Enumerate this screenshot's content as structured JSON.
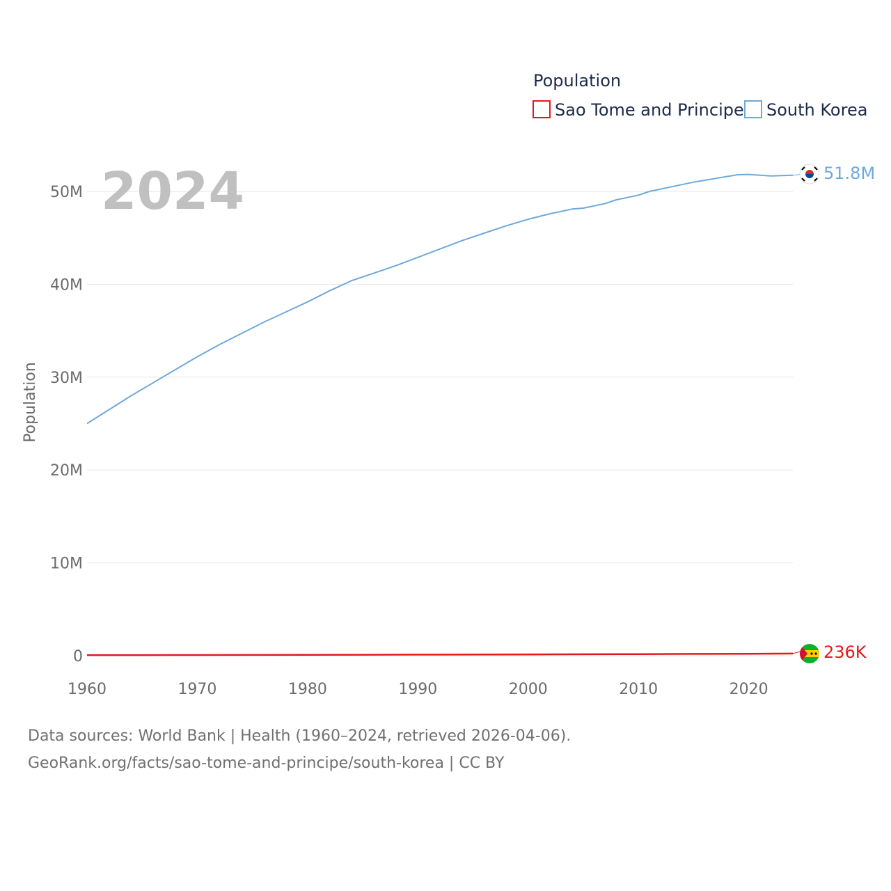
{
  "chart_data": {
    "type": "line",
    "title": "Population",
    "xlabel": "",
    "ylabel": "Population",
    "xlim": [
      1960,
      2024
    ],
    "ylim": [
      0,
      55000000
    ],
    "x_ticks": [
      1960,
      1970,
      1980,
      1990,
      2000,
      2010,
      2020
    ],
    "y_ticks": [
      0,
      10000000,
      20000000,
      30000000,
      40000000,
      50000000
    ],
    "y_tick_labels": [
      "0",
      "10M",
      "20M",
      "30M",
      "40M",
      "50M"
    ],
    "grid": true,
    "year_label": "2024",
    "legend": {
      "title": "Population",
      "position": "top-right"
    },
    "series": [
      {
        "name": "Sao Tome and Principe",
        "color": "#e31a1c",
        "end_label": "236K",
        "flag": "sao-tome-flag-icon",
        "points": [
          [
            1960,
            64000
          ],
          [
            1965,
            70000
          ],
          [
            1970,
            75000
          ],
          [
            1975,
            82000
          ],
          [
            1980,
            96000
          ],
          [
            1985,
            108000
          ],
          [
            1990,
            118000
          ],
          [
            1995,
            130000
          ],
          [
            2000,
            142000
          ],
          [
            2005,
            156000
          ],
          [
            2010,
            172000
          ],
          [
            2015,
            192000
          ],
          [
            2020,
            213000
          ],
          [
            2024,
            236000
          ]
        ]
      },
      {
        "name": "South Korea",
        "color": "#6fa8dc",
        "end_label": "51.8M",
        "flag": "south-korea-flag-icon",
        "points": [
          [
            1960,
            25000000
          ],
          [
            1962,
            26500000
          ],
          [
            1964,
            28000000
          ],
          [
            1966,
            29400000
          ],
          [
            1968,
            30800000
          ],
          [
            1970,
            32200000
          ],
          [
            1972,
            33500000
          ],
          [
            1974,
            34700000
          ],
          [
            1976,
            35900000
          ],
          [
            1978,
            37000000
          ],
          [
            1980,
            38100000
          ],
          [
            1982,
            39300000
          ],
          [
            1984,
            40400000
          ],
          [
            1986,
            41200000
          ],
          [
            1988,
            42000000
          ],
          [
            1990,
            42900000
          ],
          [
            1992,
            43800000
          ],
          [
            1994,
            44700000
          ],
          [
            1996,
            45500000
          ],
          [
            1998,
            46300000
          ],
          [
            2000,
            47000000
          ],
          [
            2002,
            47600000
          ],
          [
            2004,
            48100000
          ],
          [
            2005,
            48200000
          ],
          [
            2007,
            48700000
          ],
          [
            2008,
            49100000
          ],
          [
            2010,
            49600000
          ],
          [
            2011,
            50000000
          ],
          [
            2013,
            50500000
          ],
          [
            2015,
            51000000
          ],
          [
            2017,
            51400000
          ],
          [
            2019,
            51800000
          ],
          [
            2020,
            51830000
          ],
          [
            2022,
            51670000
          ],
          [
            2024,
            51750000
          ]
        ]
      }
    ]
  },
  "footer": {
    "line1": "Data sources: World Bank | Health (1960–2024, retrieved 2026-04-06).",
    "line2": "GeoRank.org/facts/sao-tome-and-principe/south-korea | CC BY"
  }
}
